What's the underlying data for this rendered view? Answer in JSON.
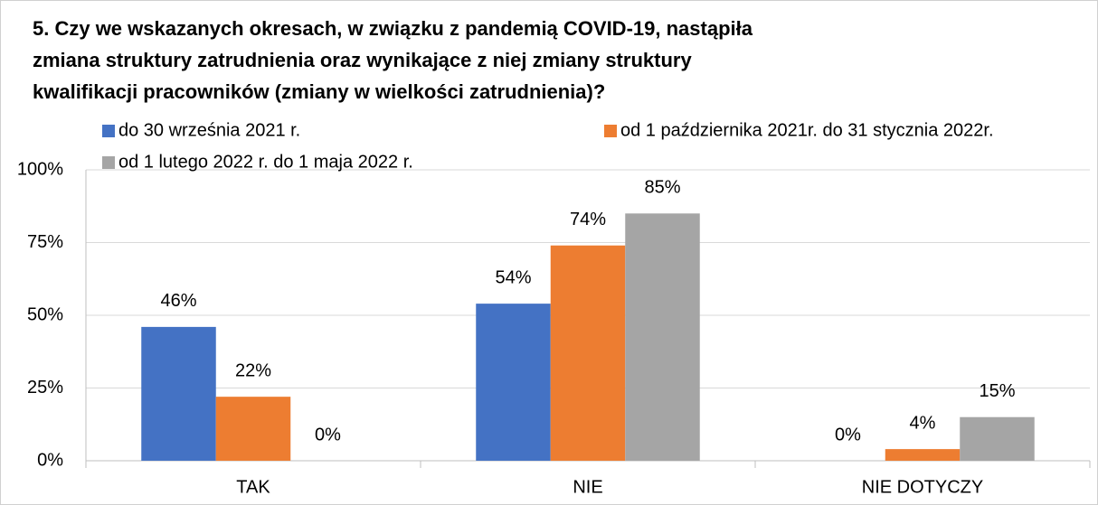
{
  "chart_data": {
    "type": "bar",
    "title": [
      "5. Czy we wskazanych okresach, w związku z pandemią COVID-19,  nastąpiła",
      "zmiana struktury zatrudnienia oraz wynikające z niej zmiany struktury",
      "kwalifikacji pracowników (zmiany w wielkości zatrudnienia)?"
    ],
    "categories": [
      "TAK",
      "NIE",
      "NIE DOTYCZY"
    ],
    "series": [
      {
        "name": "do 30 września 2021 r.",
        "color": "#4472c4",
        "values": [
          46,
          54,
          0
        ],
        "value_labels": [
          "46%",
          "54%",
          "0%"
        ]
      },
      {
        "name": "od 1 października 2021r. do 31 stycznia 2022r.",
        "color": "#ed7d31",
        "values": [
          22,
          74,
          4
        ],
        "value_labels": [
          "22%",
          "74%",
          "4%"
        ]
      },
      {
        "name": "od 1 lutego 2022 r. do 1 maja 2022 r.",
        "color": "#a5a5a5",
        "values": [
          0,
          85,
          15
        ],
        "value_labels": [
          "0%",
          "85%",
          "15%"
        ]
      }
    ],
    "ylim": [
      0,
      100
    ],
    "yticks": [
      {
        "value": 0,
        "label": "0%"
      },
      {
        "value": 25,
        "label": "25%"
      },
      {
        "value": 50,
        "label": "50%"
      },
      {
        "value": 75,
        "label": "75%"
      },
      {
        "value": 100,
        "label": "100%"
      }
    ],
    "grid": true,
    "legend": "top"
  }
}
